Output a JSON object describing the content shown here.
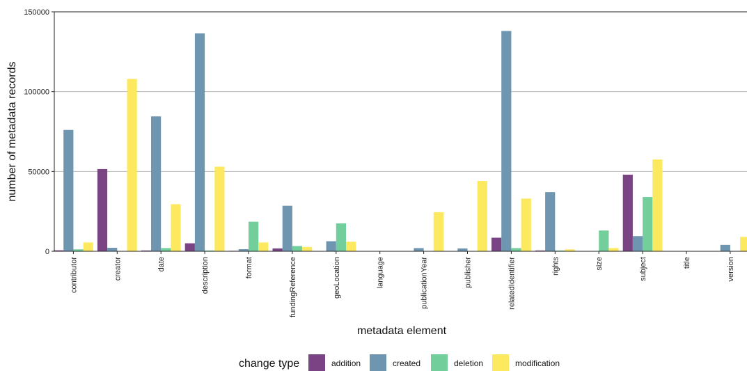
{
  "chart_data": {
    "type": "bar",
    "xlabel": "metadata element",
    "ylabel": "number of metadata records",
    "ylim": [
      0,
      150000
    ],
    "yticks": [
      "0",
      "50000",
      "100000",
      "150000"
    ],
    "grid": "horizontal",
    "legend_position": "bottom",
    "legend_title": "change type",
    "categories": [
      "contributor",
      "creator",
      "date",
      "description",
      "format",
      "fundingReference",
      "geoLocation",
      "language",
      "publicationYear",
      "publisher",
      "relatedIdentifier",
      "rights",
      "size",
      "subject",
      "title",
      "version"
    ],
    "series": [
      {
        "name": "addition",
        "color": "#7a4384",
        "values": [
          600,
          51500,
          500,
          5000,
          300,
          1800,
          0,
          0,
          0,
          0,
          8500,
          500,
          0,
          48000,
          0,
          0
        ]
      },
      {
        "name": "created",
        "color": "#6e96b0",
        "values": [
          76000,
          2200,
          84500,
          136500,
          1300,
          28500,
          6300,
          0,
          2000,
          1800,
          138000,
          37000,
          0,
          9500,
          0,
          4000
        ]
      },
      {
        "name": "deletion",
        "color": "#72ce9b",
        "values": [
          1200,
          0,
          2000,
          500,
          18500,
          3300,
          17500,
          0,
          0,
          0,
          2000,
          500,
          13000,
          34000,
          0,
          0
        ]
      },
      {
        "name": "modification",
        "color": "#fde95f",
        "values": [
          5500,
          108000,
          29500,
          53000,
          5500,
          2700,
          6000,
          0,
          24500,
          44000,
          33000,
          1200,
          2000,
          57500,
          0,
          9000
        ]
      }
    ]
  }
}
